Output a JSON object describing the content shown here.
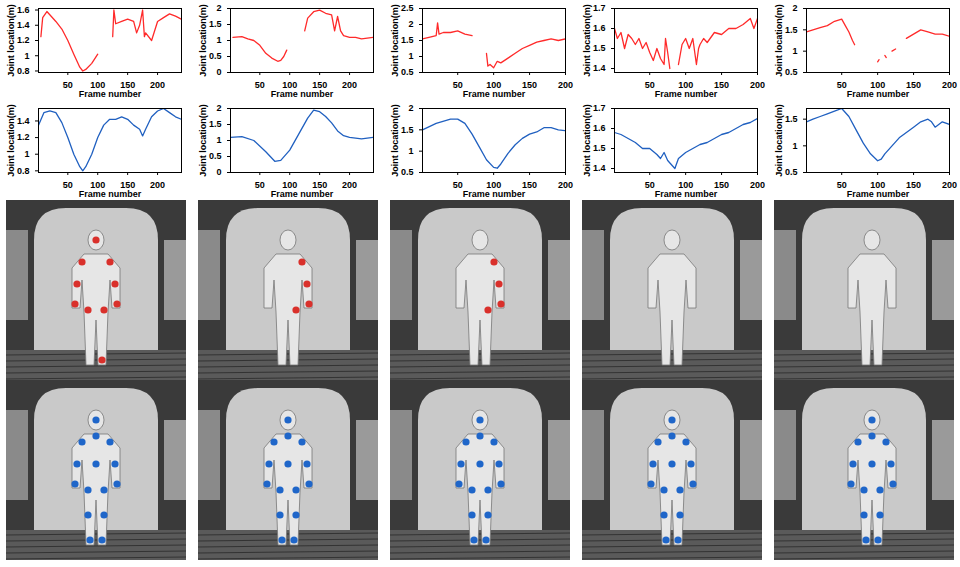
{
  "chart_data": [
    {
      "type": "line",
      "xlabel": "Frame number",
      "ylabel": "Joint location(m)",
      "color": "#ff2a2a",
      "xlim": [
        1,
        240
      ],
      "xticks": [
        50,
        100,
        150,
        200
      ],
      "ylim": [
        0.78,
        1.62
      ],
      "yticks": [
        0.8,
        1,
        1.2,
        1.4,
        1.6
      ],
      "x": [
        5,
        8,
        15,
        30,
        40,
        50,
        60,
        70,
        75,
        80,
        90,
        100,
        112,
        125,
        127,
        130,
        140,
        150,
        160,
        165,
        170,
        175,
        178,
        180,
        190,
        200,
        210,
        220,
        230,
        240
      ],
      "values": [
        1.25,
        1.5,
        1.58,
        1.45,
        1.35,
        1.2,
        1.02,
        0.85,
        0.8,
        0.82,
        0.9,
        1.02,
        null,
        1.25,
        1.6,
        1.42,
        1.45,
        1.48,
        1.45,
        1.3,
        1.4,
        1.6,
        1.25,
        1.3,
        1.2,
        1.45,
        1.5,
        1.55,
        1.52,
        1.48
      ]
    },
    {
      "type": "line",
      "xlabel": "Frame number",
      "ylabel": "Joint location(m)",
      "color": "#ff2a2a",
      "xlim": [
        1,
        240
      ],
      "xticks": [
        50,
        100,
        150,
        200
      ],
      "ylim": [
        0,
        2
      ],
      "yticks": [
        0,
        0.5,
        1,
        1.5,
        2
      ],
      "x": [
        5,
        20,
        30,
        40,
        50,
        60,
        70,
        80,
        85,
        90,
        95,
        110,
        125,
        130,
        140,
        150,
        160,
        170,
        175,
        180,
        185,
        190,
        200,
        210,
        220,
        240
      ],
      "values": [
        1.1,
        1.12,
        1.05,
        1.0,
        0.85,
        0.6,
        0.45,
        0.35,
        0.38,
        0.5,
        0.7,
        null,
        1.3,
        1.7,
        1.9,
        1.95,
        1.85,
        1.8,
        1.3,
        1.75,
        1.3,
        1.15,
        1.1,
        1.1,
        1.05,
        1.1
      ]
    },
    {
      "type": "line",
      "xlabel": "Frame number",
      "ylabel": "Joint location(m)",
      "color": "#ff2a2a",
      "xlim": [
        1,
        200
      ],
      "xticks": [
        50,
        100,
        150,
        200
      ],
      "ylim": [
        0.5,
        2.5
      ],
      "yticks": [
        0.5,
        1,
        1.5,
        2,
        2.5
      ],
      "x": [
        1,
        10,
        20,
        22,
        24,
        30,
        40,
        50,
        60,
        70,
        80,
        90,
        92,
        95,
        100,
        105,
        110,
        120,
        130,
        140,
        150,
        160,
        170,
        180,
        190,
        200
      ],
      "values": [
        1.55,
        1.6,
        1.65,
        2.05,
        1.7,
        1.75,
        1.75,
        1.8,
        1.7,
        1.65,
        null,
        1.1,
        0.7,
        0.75,
        0.65,
        0.85,
        0.8,
        0.95,
        1.1,
        1.25,
        1.35,
        1.45,
        1.5,
        1.55,
        1.5,
        1.55
      ]
    },
    {
      "type": "line",
      "xlabel": "Frame number",
      "ylabel": "Joint location(m)",
      "color": "#ff2a2a",
      "xlim": [
        1,
        200
      ],
      "xticks": [
        50,
        100,
        150,
        200
      ],
      "ylim": [
        1.38,
        1.7
      ],
      "yticks": [
        1.4,
        1.5,
        1.6,
        1.7
      ],
      "x": [
        1,
        5,
        10,
        15,
        20,
        25,
        30,
        35,
        40,
        45,
        50,
        55,
        60,
        65,
        70,
        72,
        75,
        78,
        84,
        90,
        95,
        100,
        105,
        110,
        115,
        118,
        120,
        125,
        130,
        140,
        150,
        160,
        170,
        180,
        190,
        195,
        200
      ],
      "values": [
        1.6,
        1.55,
        1.58,
        1.5,
        1.57,
        1.55,
        1.52,
        1.55,
        1.5,
        1.53,
        1.48,
        1.44,
        1.5,
        1.45,
        1.42,
        1.55,
        1.48,
        1.4,
        null,
        1.42,
        1.52,
        1.55,
        1.5,
        1.55,
        1.42,
        1.5,
        1.52,
        1.55,
        1.53,
        1.58,
        1.57,
        1.6,
        1.6,
        1.62,
        1.65,
        1.6,
        1.65
      ]
    },
    {
      "type": "line",
      "xlabel": "Frame number",
      "ylabel": "Joint location(m)",
      "color": "#ff2a2a",
      "xlim": [
        1,
        200
      ],
      "xticks": [
        50,
        100,
        150,
        200
      ],
      "ylim": [
        0.5,
        2
      ],
      "yticks": [
        0.5,
        1,
        1.5,
        2
      ],
      "x": [
        1,
        10,
        20,
        30,
        40,
        50,
        55,
        60,
        65,
        68,
        85,
        100,
        102,
        106,
        110,
        112,
        116,
        120,
        125,
        132,
        140,
        150,
        160,
        170,
        180,
        190,
        200
      ],
      "values": [
        1.45,
        1.5,
        1.55,
        1.6,
        1.7,
        1.75,
        1.6,
        1.45,
        1.25,
        1.15,
        null,
        0.75,
        0.8,
        null,
        0.9,
        0.85,
        null,
        1.0,
        1.05,
        null,
        1.3,
        1.4,
        1.5,
        1.45,
        1.4,
        1.4,
        1.35
      ]
    },
    {
      "type": "line",
      "xlabel": "Frame number",
      "ylabel": "Joint location(m)",
      "color": "#2060c0",
      "xlim": [
        1,
        240
      ],
      "xticks": [
        50,
        100,
        150,
        200
      ],
      "ylim": [
        0.78,
        1.55
      ],
      "yticks": [
        0.8,
        1,
        1.2,
        1.4
      ],
      "x": [
        1,
        10,
        20,
        30,
        40,
        50,
        60,
        70,
        75,
        80,
        90,
        100,
        110,
        120,
        130,
        140,
        150,
        160,
        170,
        175,
        180,
        190,
        200,
        210,
        220,
        230,
        240
      ],
      "values": [
        1.35,
        1.5,
        1.52,
        1.5,
        1.38,
        1.2,
        1.0,
        0.85,
        0.8,
        0.85,
        1.0,
        1.2,
        1.35,
        1.42,
        1.42,
        1.45,
        1.42,
        1.35,
        1.3,
        1.22,
        1.3,
        1.45,
        1.52,
        1.55,
        1.5,
        1.45,
        1.42
      ]
    },
    {
      "type": "line",
      "xlabel": "Frame number",
      "ylabel": "Joint location(m)",
      "color": "#2060c0",
      "xlim": [
        1,
        240
      ],
      "xticks": [
        50,
        100,
        150,
        200
      ],
      "ylim": [
        0,
        2
      ],
      "yticks": [
        0,
        0.5,
        1,
        1.5,
        2
      ],
      "x": [
        1,
        20,
        40,
        60,
        75,
        85,
        100,
        115,
        130,
        140,
        150,
        160,
        170,
        180,
        190,
        200,
        220,
        240
      ],
      "values": [
        1.1,
        1.12,
        1.0,
        0.65,
        0.35,
        0.38,
        0.7,
        1.2,
        1.7,
        1.95,
        1.9,
        1.75,
        1.55,
        1.3,
        1.15,
        1.1,
        1.05,
        1.1
      ]
    },
    {
      "type": "line",
      "xlabel": "Frame number",
      "ylabel": "Joint location(m)",
      "color": "#2060c0",
      "xlim": [
        1,
        200
      ],
      "xticks": [
        50,
        100,
        150,
        200
      ],
      "ylim": [
        0.5,
        2
      ],
      "yticks": [
        0.5,
        1,
        1.5,
        2
      ],
      "x": [
        1,
        20,
        40,
        50,
        60,
        70,
        80,
        90,
        100,
        105,
        110,
        120,
        130,
        140,
        150,
        160,
        170,
        180,
        190,
        200
      ],
      "values": [
        1.5,
        1.65,
        1.75,
        1.75,
        1.65,
        1.4,
        1.1,
        0.8,
        0.62,
        0.6,
        0.7,
        0.95,
        1.15,
        1.3,
        1.4,
        1.45,
        1.55,
        1.55,
        1.5,
        1.48
      ]
    },
    {
      "type": "line",
      "xlabel": "Frame number",
      "ylabel": "Joint location(m)",
      "color": "#2060c0",
      "xlim": [
        1,
        200
      ],
      "xticks": [
        50,
        100,
        150,
        200
      ],
      "ylim": [
        1.38,
        1.7
      ],
      "yticks": [
        1.4,
        1.5,
        1.6,
        1.7
      ],
      "x": [
        1,
        10,
        20,
        30,
        40,
        50,
        60,
        65,
        70,
        75,
        80,
        85,
        90,
        100,
        110,
        120,
        130,
        140,
        150,
        160,
        170,
        180,
        190,
        200
      ],
      "values": [
        1.58,
        1.57,
        1.55,
        1.53,
        1.5,
        1.5,
        1.47,
        1.45,
        1.48,
        1.44,
        1.42,
        1.4,
        1.45,
        1.48,
        1.5,
        1.52,
        1.53,
        1.55,
        1.57,
        1.58,
        1.6,
        1.62,
        1.63,
        1.65
      ]
    },
    {
      "type": "line",
      "xlabel": "Frame number",
      "ylabel": "Joint location(m)",
      "color": "#2060c0",
      "xlim": [
        1,
        200
      ],
      "xticks": [
        50,
        100,
        150,
        200
      ],
      "ylim": [
        0.5,
        1.7
      ],
      "yticks": [
        0.5,
        1,
        1.5
      ],
      "x": [
        1,
        10,
        20,
        30,
        40,
        50,
        60,
        70,
        80,
        90,
        100,
        105,
        110,
        120,
        130,
        140,
        150,
        160,
        170,
        175,
        180,
        190,
        200
      ],
      "values": [
        1.45,
        1.5,
        1.55,
        1.6,
        1.65,
        1.7,
        1.55,
        1.3,
        1.05,
        0.85,
        0.72,
        0.75,
        0.85,
        1.0,
        1.15,
        1.25,
        1.35,
        1.45,
        1.5,
        1.45,
        1.35,
        1.45,
        1.4
      ]
    }
  ],
  "images": [
    {
      "color": "#d9302b",
      "dots": 10
    },
    {
      "color": "#d9302b",
      "dots": 4
    },
    {
      "color": "#d9302b",
      "dots": 4
    },
    {
      "color": "#d9302b",
      "dots": 0
    },
    {
      "color": "#d9302b",
      "dots": 0
    },
    {
      "color": "#1f66c9",
      "dots": 15
    },
    {
      "color": "#1f66c9",
      "dots": 15
    },
    {
      "color": "#1f66c9",
      "dots": 15
    },
    {
      "color": "#1f66c9",
      "dots": 15
    },
    {
      "color": "#1f66c9",
      "dots": 15
    }
  ]
}
